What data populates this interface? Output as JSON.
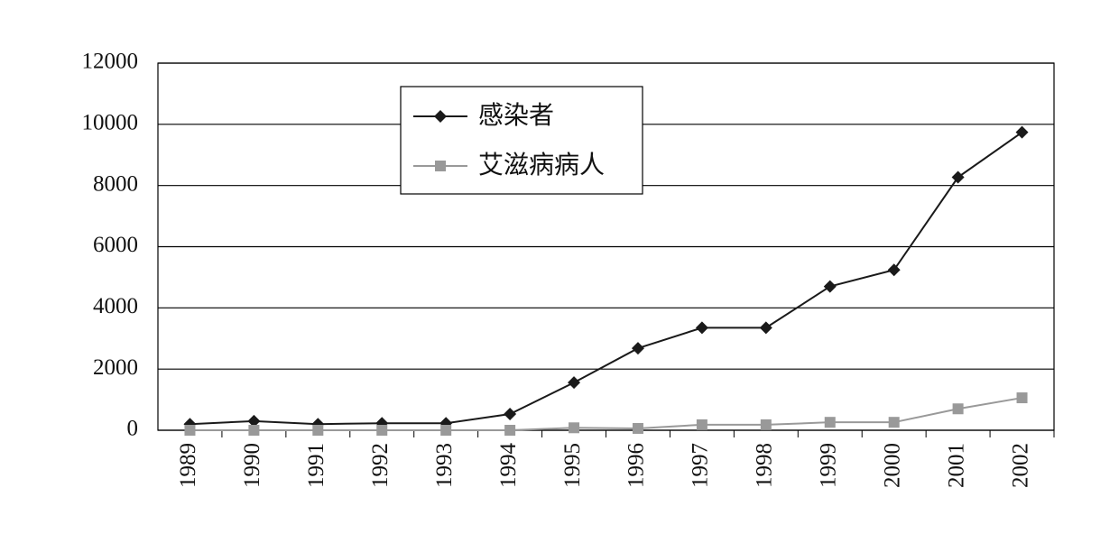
{
  "chart_data": {
    "type": "line",
    "categories": [
      "1989",
      "1990",
      "1991",
      "1992",
      "1993",
      "1994",
      "1995",
      "1996",
      "1997",
      "1998",
      "1999",
      "2000",
      "2001",
      "2002"
    ],
    "series": [
      {
        "name": "感染者",
        "color": "#1a1a1a",
        "marker": "diamond",
        "values": [
          200,
          300,
          200,
          230,
          230,
          530,
          1560,
          2680,
          3350,
          3350,
          4700,
          5240,
          8270,
          9740
        ]
      },
      {
        "name": "艾滋病病人",
        "color": "#999999",
        "marker": "square",
        "values": [
          0,
          0,
          0,
          0,
          0,
          0,
          80,
          60,
          180,
          180,
          260,
          260,
          700,
          1060
        ]
      }
    ],
    "ylim": [
      0,
      12000
    ],
    "yticks": [
      0,
      2000,
      4000,
      6000,
      8000,
      10000,
      12000
    ],
    "grid": true
  }
}
